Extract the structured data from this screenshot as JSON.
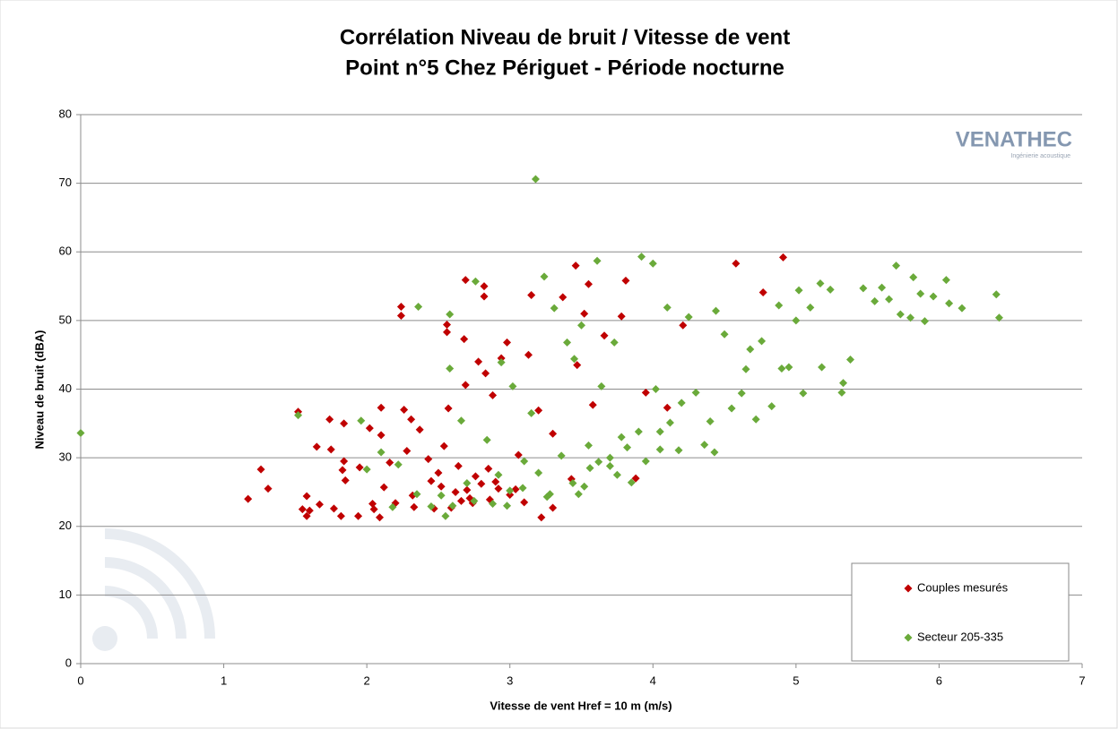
{
  "chart_data": {
    "type": "scatter",
    "title": "Corrélation Niveau de bruit / Vitesse de vent",
    "subtitle": "Point n°5 Chez Périguet - Période nocturne",
    "x_label": "Vitesse de vent Href = 10 m (m/s)",
    "y_label": "Niveau de bruit (dBA)",
    "logo": {
      "name": "VENATHEC",
      "tagline": "Ingénierie acoustique"
    },
    "xlim": [
      0,
      7
    ],
    "xticks": [
      0,
      1,
      2,
      3,
      4,
      5,
      6,
      7
    ],
    "ylim": [
      0,
      80
    ],
    "yticks": [
      0,
      10,
      20,
      30,
      40,
      50,
      60,
      70,
      80
    ],
    "grid": true,
    "legend": "lower right",
    "series": [
      {
        "name": "Couples mesurés",
        "color": "#c00000",
        "x": [
          1.17,
          1.26,
          1.31,
          1.52,
          1.55,
          1.58,
          1.58,
          1.6,
          1.65,
          1.67,
          1.74,
          1.75,
          1.77,
          1.82,
          1.83,
          1.84,
          1.84,
          1.85,
          1.94,
          1.95,
          2.02,
          2.04,
          2.05,
          2.09,
          2.1,
          2.1,
          2.12,
          2.16,
          2.2,
          2.24,
          2.24,
          2.26,
          2.28,
          2.31,
          2.32,
          2.33,
          2.37,
          2.43,
          2.45,
          2.47,
          2.5,
          2.54,
          2.56,
          2.56,
          2.57,
          2.59,
          2.62,
          2.66,
          2.68,
          2.69,
          2.69,
          2.72,
          2.74,
          2.78,
          2.8,
          2.82,
          2.82,
          2.83,
          2.85,
          2.88,
          2.92,
          2.94,
          2.98,
          3.0,
          3.06,
          3.1,
          3.13,
          3.15,
          3.2,
          3.22,
          3.3,
          3.37,
          3.43,
          3.46,
          3.47,
          3.52,
          3.55,
          3.58,
          3.66,
          3.78,
          3.81,
          3.88,
          3.95,
          4.1,
          4.21,
          4.58,
          4.77,
          4.91,
          2.52,
          2.7,
          2.76,
          2.9,
          3.04,
          2.64,
          2.86,
          3.3
        ],
        "y": [
          24,
          28.3,
          25.5,
          36.7,
          22.5,
          21.5,
          24.4,
          22.3,
          31.6,
          23.2,
          35.6,
          31.2,
          22.6,
          21.5,
          28.2,
          35,
          29.5,
          26.7,
          21.5,
          28.6,
          34.3,
          23.3,
          22.5,
          21.3,
          37.3,
          33.3,
          25.7,
          29.3,
          23.4,
          52,
          50.7,
          37,
          31,
          35.6,
          24.5,
          22.8,
          34.1,
          29.8,
          26.6,
          22.6,
          27.8,
          31.7,
          49.4,
          48.3,
          37.2,
          22.7,
          25,
          23.7,
          47.3,
          40.6,
          55.9,
          24.1,
          23.4,
          44,
          26.2,
          55,
          53.5,
          42.3,
          28.4,
          39.1,
          25.5,
          44.5,
          46.8,
          24.6,
          30.4,
          23.5,
          45,
          53.7,
          36.9,
          21.3,
          22.7,
          53.4,
          26.9,
          58,
          43.5,
          51,
          55.3,
          37.7,
          47.8,
          50.6,
          55.8,
          27,
          39.5,
          37.3,
          49.3,
          58.3,
          54.1,
          59.2,
          25.8,
          25.3,
          27.3,
          26.5,
          25.4,
          28.8,
          23.9,
          33.5
        ]
      },
      {
        "name": "Secteur 205-335",
        "color": "#6aaa3a",
        "x": [
          0,
          1.52,
          1.96,
          2.0,
          2.1,
          2.18,
          2.22,
          2.35,
          2.36,
          2.45,
          2.55,
          2.58,
          2.58,
          2.66,
          2.7,
          2.76,
          2.84,
          2.88,
          2.94,
          2.98,
          3.02,
          3.09,
          3.15,
          3.18,
          3.24,
          3.28,
          3.31,
          3.36,
          3.4,
          3.45,
          3.48,
          3.5,
          3.56,
          3.61,
          3.64,
          3.7,
          3.73,
          3.78,
          3.85,
          3.92,
          3.95,
          4.0,
          4.02,
          4.05,
          4.1,
          4.12,
          4.18,
          4.2,
          4.25,
          4.3,
          4.36,
          4.43,
          4.44,
          4.5,
          4.55,
          4.62,
          4.68,
          4.72,
          4.76,
          4.83,
          4.88,
          4.9,
          4.95,
          5.0,
          5.02,
          5.05,
          5.1,
          5.17,
          5.18,
          5.24,
          5.33,
          5.38,
          5.47,
          5.55,
          5.6,
          5.65,
          5.7,
          5.73,
          5.8,
          5.82,
          5.87,
          5.9,
          5.96,
          6.05,
          6.07,
          6.16,
          6.4,
          6.42,
          3.0,
          3.2,
          3.44,
          3.62,
          3.82,
          4.05,
          2.75,
          2.92,
          3.1,
          3.26,
          3.52,
          3.7,
          3.9,
          2.52,
          2.6,
          3.55,
          3.75,
          4.4,
          4.65,
          5.32
        ],
        "y": [
          33.6,
          36.2,
          35.4,
          28.3,
          30.8,
          22.8,
          29,
          24.7,
          52,
          22.9,
          21.5,
          50.9,
          43,
          35.4,
          26.3,
          55.7,
          32.6,
          23.3,
          43.9,
          23,
          40.4,
          25.6,
          36.5,
          70.6,
          56.4,
          24.7,
          51.8,
          30.3,
          46.8,
          44.4,
          24.7,
          49.3,
          28.5,
          58.7,
          40.4,
          30,
          46.8,
          33,
          26.4,
          59.3,
          29.5,
          58.3,
          40,
          31.2,
          51.9,
          35.1,
          31.1,
          38,
          50.5,
          39.5,
          31.9,
          30.8,
          51.4,
          48,
          37.2,
          39.4,
          45.8,
          35.6,
          47,
          37.5,
          52.2,
          43,
          43.2,
          50,
          54.4,
          39.4,
          51.9,
          55.4,
          43.2,
          54.5,
          40.9,
          44.3,
          54.7,
          52.8,
          54.8,
          53.1,
          58,
          50.9,
          50.4,
          56.3,
          53.9,
          49.9,
          53.5,
          55.9,
          52.5,
          51.8,
          53.8,
          50.4,
          25.2,
          27.8,
          26.3,
          29.4,
          31.5,
          33.8,
          23.7,
          27.5,
          29.5,
          24.3,
          25.8,
          28.8,
          33.8,
          24.5,
          23,
          31.8,
          27.5,
          35.3,
          42.9,
          39.5
        ]
      }
    ]
  }
}
